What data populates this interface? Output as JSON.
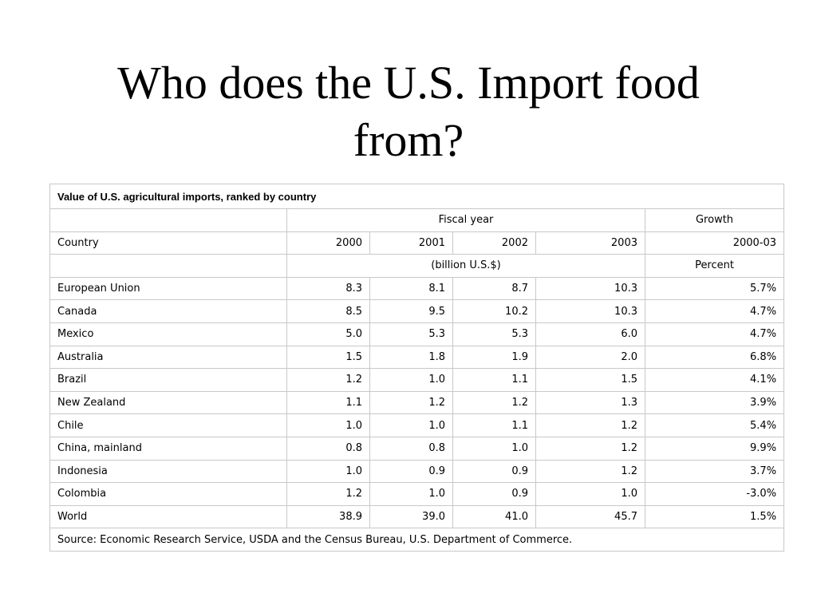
{
  "slide": {
    "title_line1": "Who does the U.S. Import food",
    "title_line2": "from?"
  },
  "table": {
    "caption": "Value of U.S. agricultural imports, ranked by country",
    "group_headers": {
      "fiscal_year": "Fiscal year",
      "growth": "Growth"
    },
    "columns": [
      "Country",
      "2000",
      "2001",
      "2002",
      "2003",
      "2000-03"
    ],
    "units": {
      "fiscal_year": "(billion U.S.$)",
      "growth": "Percent"
    },
    "rows": [
      [
        "European Union",
        "8.3",
        "8.1",
        "8.7",
        "10.3",
        "5.7%"
      ],
      [
        "Canada",
        "8.5",
        "9.5",
        "10.2",
        "10.3",
        "4.7%"
      ],
      [
        "Mexico",
        "5.0",
        "5.3",
        "5.3",
        "6.0",
        "4.7%"
      ],
      [
        "Australia",
        "1.5",
        "1.8",
        "1.9",
        "2.0",
        "6.8%"
      ],
      [
        "Brazil",
        "1.2",
        "1.0",
        "1.1",
        "1.5",
        "4.1%"
      ],
      [
        "New Zealand",
        "1.1",
        "1.2",
        "1.2",
        "1.3",
        "3.9%"
      ],
      [
        "Chile",
        "1.0",
        "1.0",
        "1.1",
        "1.2",
        "5.4%"
      ],
      [
        "China, mainland",
        "0.8",
        "0.8",
        "1.0",
        "1.2",
        "9.9%"
      ],
      [
        "Indonesia",
        "1.0",
        "0.9",
        "0.9",
        "1.2",
        "3.7%"
      ],
      [
        "Colombia",
        "1.2",
        "1.0",
        "0.9",
        "1.0",
        "-3.0%"
      ],
      [
        "World",
        "38.9",
        "39.0",
        "41.0",
        "45.7",
        "1.5%"
      ]
    ],
    "source": "Source: Economic Research Service, USDA and the Census Bureau, U.S. Department of Commerce."
  }
}
